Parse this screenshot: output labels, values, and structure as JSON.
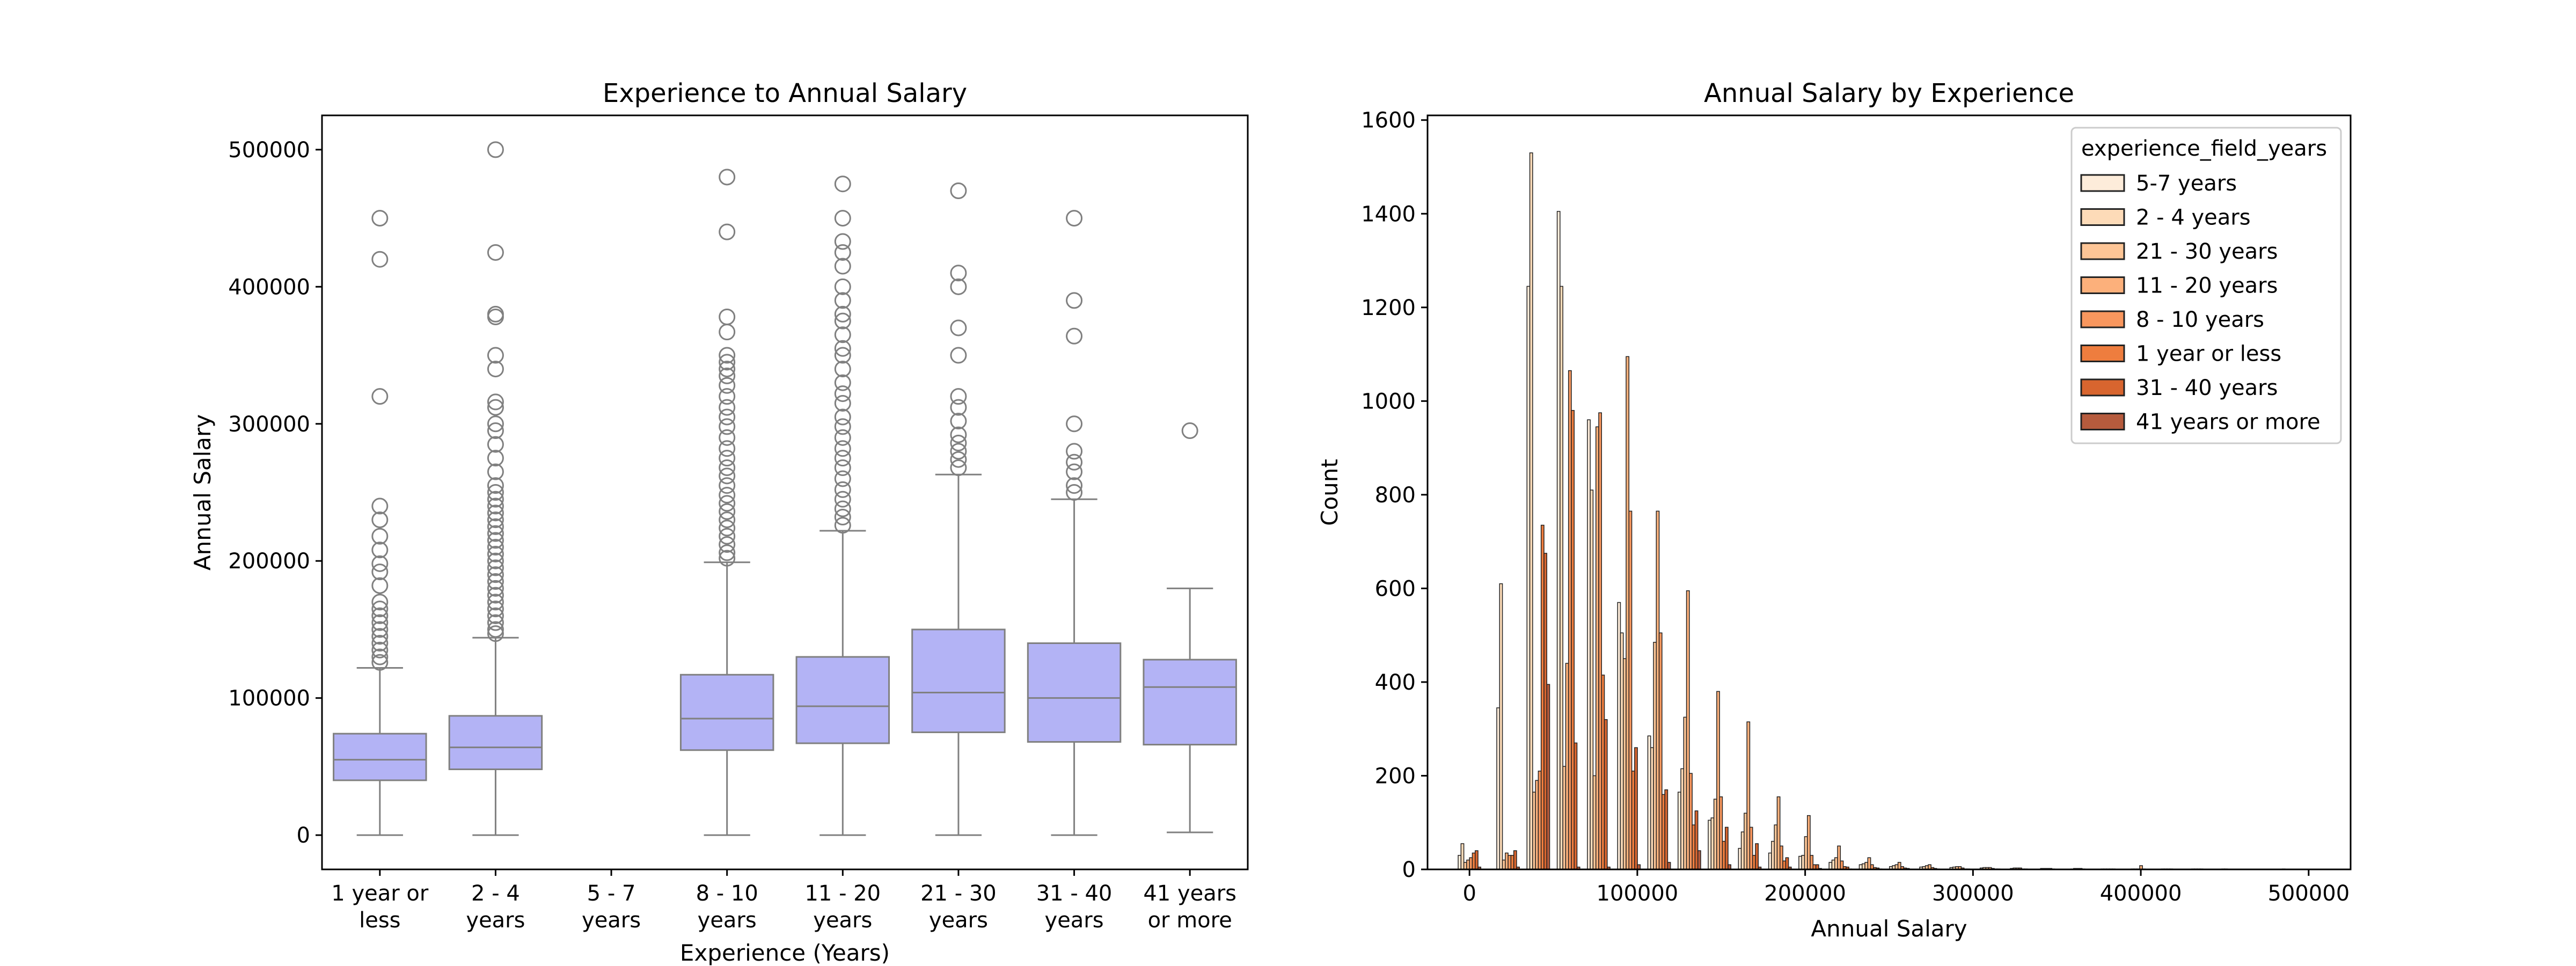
{
  "chart_data": [
    {
      "type": "box",
      "title": "Experience to Annual Salary",
      "xlabel": "Experience (Years)",
      "ylabel": "Annual Salary",
      "ylim": [
        -25000,
        525000
      ],
      "yticks": [
        0,
        100000,
        200000,
        300000,
        400000,
        500000
      ],
      "box_color": "#b3b3f5",
      "line_color": "#808080",
      "categories": [
        [
          "1 year or",
          "less"
        ],
        [
          "2 - 4",
          "years"
        ],
        [
          "5 - 7",
          "years"
        ],
        [
          "8 - 10",
          "years"
        ],
        [
          "11 - 20",
          "years"
        ],
        [
          "21 - 30",
          "years"
        ],
        [
          "31 - 40",
          "years"
        ],
        [
          "41 years",
          "or more"
        ]
      ],
      "boxes": [
        {
          "whisker_low": 0,
          "q1": 40000,
          "median": 55000,
          "q3": 74000,
          "whisker_high": 122000,
          "outliers": [
            450000,
            420000,
            320000,
            240000,
            230000,
            218000,
            208000,
            198000,
            192000,
            182000,
            170000,
            165000,
            160000,
            155000,
            150000,
            145000,
            140000,
            135000,
            130000,
            126000
          ]
        },
        {
          "whisker_low": 0,
          "q1": 48000,
          "median": 64000,
          "q3": 87000,
          "whisker_high": 144000,
          "outliers": [
            500000,
            425000,
            380000,
            378000,
            350000,
            340000,
            316000,
            312000,
            300000,
            295000,
            285000,
            275000,
            265000,
            255000,
            250000,
            245000,
            240000,
            235000,
            230000,
            225000,
            220000,
            215000,
            210000,
            205000,
            200000,
            195000,
            190000,
            185000,
            180000,
            175000,
            170000,
            165000,
            160000,
            155000,
            150000,
            147000
          ]
        },
        null,
        {
          "whisker_low": 0,
          "q1": 62000,
          "median": 85000,
          "q3": 117000,
          "whisker_high": 199000,
          "outliers": [
            480000,
            440000,
            378000,
            367000,
            350000,
            345000,
            340000,
            335000,
            328000,
            320000,
            312000,
            305000,
            298000,
            290000,
            282000,
            275000,
            268000,
            262000,
            255000,
            248000,
            242000,
            236000,
            230000,
            224000,
            218000,
            212000,
            206000,
            202000
          ]
        },
        {
          "whisker_low": 0,
          "q1": 67000,
          "median": 94000,
          "q3": 130000,
          "whisker_high": 222000,
          "outliers": [
            475000,
            450000,
            433000,
            425000,
            415000,
            400000,
            390000,
            380000,
            375000,
            365000,
            355000,
            350000,
            340000,
            330000,
            322000,
            315000,
            305000,
            298000,
            290000,
            282000,
            275000,
            268000,
            260000,
            252000,
            245000,
            238000,
            232000,
            226000
          ]
        },
        {
          "whisker_low": 0,
          "q1": 75000,
          "median": 104000,
          "q3": 150000,
          "whisker_high": 263000,
          "outliers": [
            470000,
            410000,
            400000,
            370000,
            350000,
            320000,
            312000,
            302000,
            292000,
            286000,
            280000,
            274000,
            268000
          ]
        },
        {
          "whisker_low": 0,
          "q1": 68000,
          "median": 100000,
          "q3": 140000,
          "whisker_high": 245000,
          "outliers": [
            450000,
            390000,
            364000,
            300000,
            280000,
            272000,
            265000,
            255000,
            250000
          ]
        },
        {
          "whisker_low": 2000,
          "q1": 66000,
          "median": 108000,
          "q3": 128000,
          "whisker_high": 180000,
          "outliers": [
            295000
          ]
        }
      ]
    },
    {
      "type": "histogram",
      "title": "Annual Salary by Experience",
      "xlabel": "Annual Salary",
      "ylabel": "Count",
      "xlim": [
        -25000,
        525000
      ],
      "ylim": [
        0,
        1610
      ],
      "xticks": [
        0,
        100000,
        200000,
        300000,
        400000,
        500000
      ],
      "yticks": [
        0,
        200,
        400,
        600,
        800,
        1000,
        1200,
        1400,
        1600
      ],
      "legend_title": "experience_field_years",
      "legend_position": "top-right",
      "bin_centers": [
        0,
        23000,
        41000,
        59000,
        77000,
        95000,
        113000,
        131000,
        149000,
        167000,
        185000,
        203000,
        221000,
        239000,
        257000,
        275000,
        293000,
        311000,
        329000,
        347000,
        365000,
        383000,
        401000,
        419000,
        437000,
        455000,
        473000,
        491000
      ],
      "series": [
        {
          "name": "5-7 years",
          "color": "#fdecda",
          "values": [
            30,
            345,
            1245,
            1405,
            960,
            570,
            285,
            165,
            105,
            45,
            35,
            28,
            15,
            10,
            6,
            5,
            4,
            3,
            2,
            2,
            1,
            1,
            1,
            1,
            1,
            1,
            0,
            1
          ]
        },
        {
          "name": "2 - 4 years",
          "color": "#fddbb8",
          "values": [
            55,
            610,
            1530,
            1245,
            810,
            505,
            260,
            215,
            110,
            80,
            60,
            30,
            20,
            12,
            8,
            6,
            5,
            4,
            3,
            2,
            2,
            1,
            1,
            1,
            1,
            1,
            0,
            0
          ]
        },
        {
          "name": "21 - 30 years",
          "color": "#fdc596",
          "values": [
            15,
            20,
            165,
            220,
            200,
            450,
            485,
            325,
            150,
            120,
            95,
            70,
            25,
            15,
            10,
            8,
            6,
            4,
            3,
            2,
            2,
            1,
            1,
            1,
            1,
            0,
            0,
            0
          ]
        },
        {
          "name": "11 - 20 years",
          "color": "#fcb07b",
          "values": [
            20,
            35,
            190,
            440,
            945,
            1095,
            765,
            595,
            380,
            315,
            155,
            115,
            50,
            25,
            15,
            10,
            6,
            4,
            3,
            2,
            2,
            1,
            8,
            1,
            1,
            0,
            0,
            0
          ]
        },
        {
          "name": "8 - 10 years",
          "color": "#f9975e",
          "values": [
            25,
            30,
            210,
            1065,
            975,
            765,
            505,
            205,
            155,
            90,
            50,
            30,
            18,
            10,
            6,
            4,
            3,
            2,
            1,
            1,
            1,
            1,
            1,
            0,
            0,
            0,
            0,
            0
          ]
        },
        {
          "name": "1 year or less",
          "color": "#ee7d3e",
          "values": [
            35,
            30,
            735,
            980,
            415,
            210,
            160,
            95,
            60,
            30,
            18,
            10,
            6,
            4,
            3,
            2,
            1,
            1,
            1,
            0,
            0,
            0,
            0,
            0,
            0,
            0,
            0,
            0
          ]
        },
        {
          "name": "31 - 40 years",
          "color": "#d8652f",
          "values": [
            40,
            40,
            675,
            270,
            320,
            260,
            170,
            125,
            90,
            55,
            25,
            10,
            5,
            3,
            2,
            1,
            1,
            1,
            0,
            0,
            0,
            0,
            0,
            0,
            0,
            0,
            0,
            0
          ]
        },
        {
          "name": "41 years or more",
          "color": "#b65b3d",
          "values": [
            5,
            5,
            395,
            5,
            5,
            10,
            15,
            40,
            10,
            5,
            5,
            2,
            1,
            1,
            0,
            0,
            0,
            0,
            0,
            0,
            0,
            0,
            0,
            0,
            0,
            0,
            0,
            0
          ]
        }
      ]
    }
  ]
}
